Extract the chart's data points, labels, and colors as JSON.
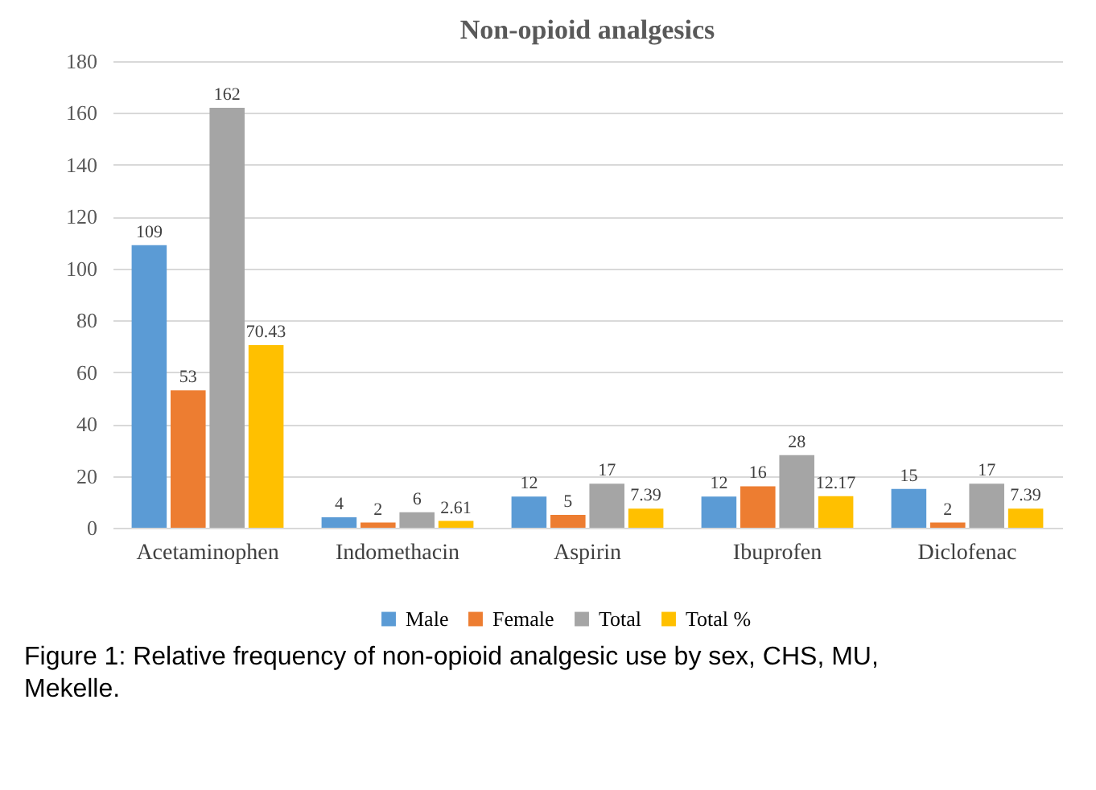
{
  "chart_data": {
    "type": "bar",
    "title": "Non-opioid analgesics",
    "categories": [
      "Acetaminophen",
      "Indomethacin",
      "Aspirin",
      "Ibuprofen",
      "Diclofenac"
    ],
    "series": [
      {
        "name": "Male",
        "color": "#5b9bd5",
        "values": [
          109,
          4,
          12,
          12,
          15
        ]
      },
      {
        "name": "Female",
        "color": "#ed7d31",
        "values": [
          53,
          2,
          5,
          16,
          2
        ]
      },
      {
        "name": "Total",
        "color": "#a5a5a5",
        "values": [
          162,
          6,
          17,
          28,
          17
        ]
      },
      {
        "name": "Total %",
        "color": "#ffc000",
        "values": [
          70.43,
          2.61,
          7.39,
          12.17,
          7.39
        ]
      }
    ],
    "ylim": [
      0,
      180
    ],
    "yticks": [
      0,
      20,
      40,
      60,
      80,
      100,
      120,
      140,
      160,
      180
    ],
    "grid": "y",
    "legend": "bottom",
    "data_labels": true,
    "annotations": [
      "Figure 1:  Relative frequency of non-opioid analgesic use by sex, CHS, MU, Mekelle."
    ]
  }
}
